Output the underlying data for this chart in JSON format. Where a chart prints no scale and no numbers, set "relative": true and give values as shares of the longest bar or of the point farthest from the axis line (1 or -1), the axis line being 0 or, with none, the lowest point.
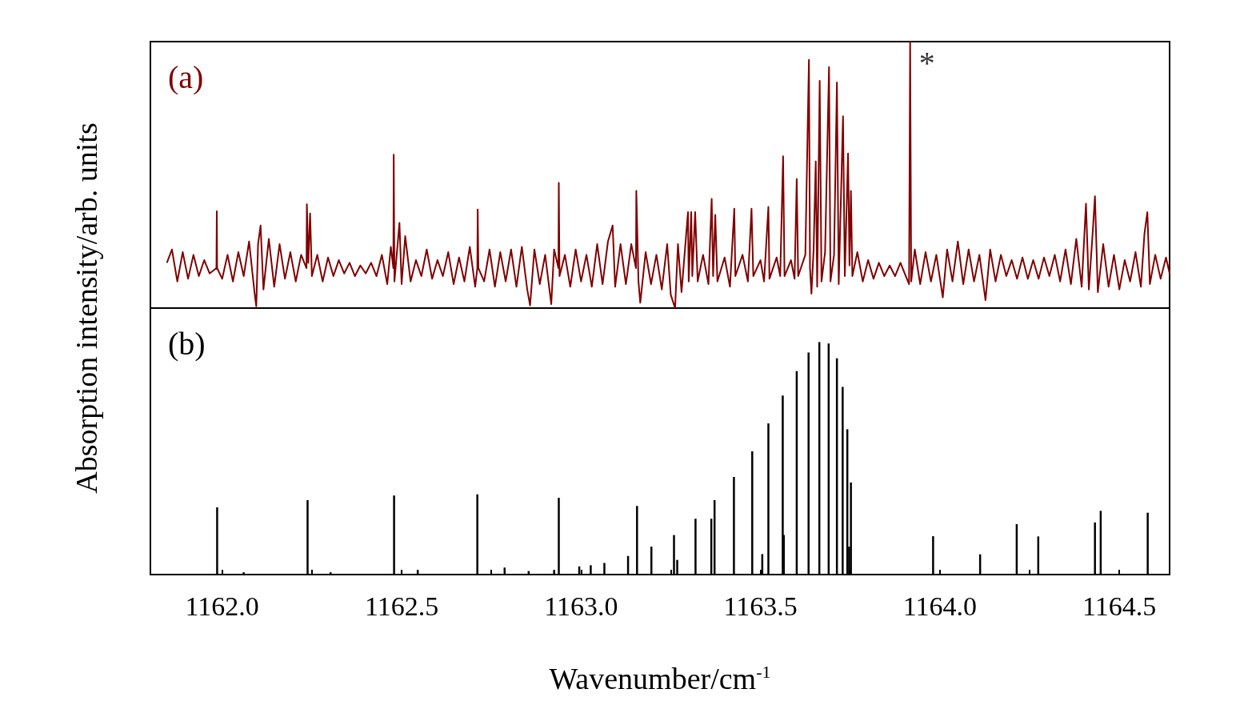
{
  "chart_data": [
    {
      "type": "line",
      "title": "(a)",
      "ylabel": "Absorption intensity/arb. units",
      "relative": true,
      "xlim": [
        1161.8,
        1164.64
      ],
      "tick_labels": false,
      "color": "#800000",
      "annotations": [
        {
          "text": "*",
          "x": 1163.917,
          "y": 1.0
        }
      ],
      "x": [
        1161.846,
        1161.86,
        1161.875,
        1161.89,
        1161.905,
        1161.92,
        1161.935,
        1161.95,
        1161.965,
        1161.984,
        1161.985,
        1161.986,
        1162.0,
        1162.015,
        1162.03,
        1162.045,
        1162.06,
        1162.075,
        1162.09,
        1162.095,
        1162.1,
        1162.107,
        1162.115,
        1162.13,
        1162.145,
        1162.16,
        1162.175,
        1162.19,
        1162.205,
        1162.22,
        1162.235,
        1162.236,
        1162.24,
        1162.245,
        1162.25,
        1162.265,
        1162.28,
        1162.295,
        1162.31,
        1162.325,
        1162.34,
        1162.355,
        1162.37,
        1162.385,
        1162.4,
        1162.415,
        1162.43,
        1162.445,
        1162.46,
        1162.47,
        1162.477,
        1162.478,
        1162.48,
        1162.494,
        1162.5,
        1162.51,
        1162.525,
        1162.54,
        1162.555,
        1162.57,
        1162.585,
        1162.6,
        1162.615,
        1162.63,
        1162.645,
        1162.66,
        1162.675,
        1162.69,
        1162.705,
        1162.711,
        1162.712,
        1162.714,
        1162.73,
        1162.745,
        1162.76,
        1162.775,
        1162.79,
        1162.805,
        1162.82,
        1162.835,
        1162.85,
        1162.858,
        1162.87,
        1162.885,
        1162.9,
        1162.917,
        1162.925,
        1162.937,
        1162.938,
        1162.94,
        1162.955,
        1162.97,
        1162.985,
        1163.0,
        1163.015,
        1163.03,
        1163.045,
        1163.06,
        1163.075,
        1163.088,
        1163.095,
        1163.11,
        1163.125,
        1163.14,
        1163.153,
        1163.154,
        1163.16,
        1163.165,
        1163.18,
        1163.195,
        1163.21,
        1163.225,
        1163.24,
        1163.25,
        1163.262,
        1163.27,
        1163.28,
        1163.298,
        1163.3,
        1163.307,
        1163.31,
        1163.318,
        1163.325,
        1163.34,
        1163.355,
        1163.364,
        1163.368,
        1163.374,
        1163.38,
        1163.4,
        1163.415,
        1163.427,
        1163.43,
        1163.45,
        1163.465,
        1163.475,
        1163.48,
        1163.5,
        1163.51,
        1163.522,
        1163.525,
        1163.545,
        1163.555,
        1163.563,
        1163.567,
        1163.585,
        1163.595,
        1163.601,
        1163.605,
        1163.625,
        1163.635,
        1163.638,
        1163.642,
        1163.648,
        1163.654,
        1163.658,
        1163.665,
        1163.67,
        1163.68,
        1163.691,
        1163.695,
        1163.705,
        1163.713,
        1163.718,
        1163.73,
        1163.735,
        1163.744,
        1163.748,
        1163.752,
        1163.756,
        1163.77,
        1163.785,
        1163.8,
        1163.815,
        1163.83,
        1163.845,
        1163.86,
        1163.875,
        1163.89,
        1163.905,
        1163.914,
        1163.917,
        1163.92,
        1163.93,
        1163.945,
        1163.96,
        1163.975,
        1163.99,
        1164.008,
        1164.02,
        1164.035,
        1164.05,
        1164.065,
        1164.08,
        1164.095,
        1164.11,
        1164.127,
        1164.14,
        1164.155,
        1164.17,
        1164.185,
        1164.2,
        1164.215,
        1164.23,
        1164.245,
        1164.26,
        1164.275,
        1164.29,
        1164.305,
        1164.32,
        1164.335,
        1164.35,
        1164.365,
        1164.38,
        1164.395,
        1164.407,
        1164.415,
        1164.425,
        1164.432,
        1164.44,
        1164.455,
        1164.47,
        1164.485,
        1164.5,
        1164.515,
        1164.53,
        1164.545,
        1164.56,
        1164.57,
        1164.578,
        1164.585,
        1164.6,
        1164.615,
        1164.63,
        1164.64
      ],
      "values": [
        0.17,
        0.22,
        0.1,
        0.21,
        0.11,
        0.2,
        0.12,
        0.18,
        0.13,
        0.15,
        0.363,
        0.15,
        0.11,
        0.2,
        0.1,
        0.21,
        0.12,
        0.25,
        0.06,
        0.007,
        0.24,
        0.31,
        0.07,
        0.26,
        0.08,
        0.24,
        0.11,
        0.21,
        0.1,
        0.2,
        0.15,
        0.39,
        0.17,
        0.355,
        0.12,
        0.2,
        0.1,
        0.19,
        0.12,
        0.18,
        0.13,
        0.17,
        0.12,
        0.16,
        0.13,
        0.17,
        0.12,
        0.2,
        0.09,
        0.23,
        0.15,
        0.576,
        0.1,
        0.32,
        0.09,
        0.27,
        0.1,
        0.18,
        0.12,
        0.22,
        0.11,
        0.18,
        0.12,
        0.21,
        0.09,
        0.19,
        0.1,
        0.23,
        0.08,
        0.15,
        0.37,
        0.15,
        0.1,
        0.22,
        0.08,
        0.21,
        0.1,
        0.22,
        0.08,
        0.23,
        0.07,
        0.01,
        0.22,
        0.09,
        0.2,
        0.015,
        0.22,
        0.15,
        0.47,
        0.12,
        0.2,
        0.08,
        0.22,
        0.1,
        0.2,
        0.08,
        0.24,
        0.09,
        0.25,
        0.31,
        0.08,
        0.24,
        0.09,
        0.24,
        0.15,
        0.44,
        0.1,
        0.02,
        0.21,
        0.09,
        0.2,
        0.07,
        0.24,
        0.05,
        0.0,
        0.24,
        0.06,
        0.36,
        0.1,
        0.36,
        0.12,
        0.36,
        0.1,
        0.2,
        0.09,
        0.41,
        0.12,
        0.35,
        0.1,
        0.19,
        0.08,
        0.373,
        0.12,
        0.2,
        0.1,
        0.373,
        0.12,
        0.18,
        0.1,
        0.38,
        0.11,
        0.19,
        0.12,
        0.57,
        0.12,
        0.18,
        0.11,
        0.484,
        0.12,
        0.2,
        0.932,
        0.15,
        0.054,
        0.22,
        0.55,
        0.08,
        0.853,
        0.1,
        0.21,
        0.905,
        0.1,
        0.2,
        0.847,
        0.09,
        0.72,
        0.12,
        0.58,
        0.16,
        0.44,
        0.12,
        0.21,
        0.1,
        0.18,
        0.11,
        0.17,
        0.12,
        0.16,
        0.12,
        0.17,
        0.12,
        0.09,
        1.0,
        0.1,
        0.22,
        0.09,
        0.21,
        0.1,
        0.2,
        0.04,
        0.22,
        0.1,
        0.25,
        0.09,
        0.22,
        0.1,
        0.2,
        0.03,
        0.22,
        0.1,
        0.2,
        0.12,
        0.18,
        0.11,
        0.19,
        0.11,
        0.18,
        0.11,
        0.19,
        0.12,
        0.2,
        0.1,
        0.22,
        0.09,
        0.26,
        0.08,
        0.392,
        0.07,
        0.27,
        0.42,
        0.06,
        0.24,
        0.08,
        0.2,
        0.07,
        0.18,
        0.1,
        0.21,
        0.08,
        0.28,
        0.36,
        0.09,
        0.2,
        0.11,
        0.19,
        0.13
      ]
    },
    {
      "type": "bar",
      "title": "(b)",
      "xlabel": "Wavenumber/cm$^{-1}$",
      "relative": true,
      "xlim": [
        1161.8,
        1164.64
      ],
      "tick_labels": "x",
      "color": "#000000",
      "xticks": [
        {
          "value": 1162,
          "label": "1162.0"
        },
        {
          "value": 1162.25,
          "label": null
        },
        {
          "value": 1162.5,
          "label": "1162.5"
        },
        {
          "value": 1162.75,
          "label": null
        },
        {
          "value": 1163,
          "label": "1163.0"
        },
        {
          "value": 1163.25,
          "label": null
        },
        {
          "value": 1163.5,
          "label": "1163.5"
        },
        {
          "value": 1163.75,
          "label": null
        },
        {
          "value": 1164,
          "label": "1164.0"
        },
        {
          "value": 1164.25,
          "label": null
        },
        {
          "value": 1164.5,
          "label": "1164.5"
        }
      ],
      "x": [
        1161.986,
        1162.06,
        1162.238,
        1162.302,
        1162.479,
        1162.545,
        1162.711,
        1162.787,
        1162.854,
        1162.925,
        1162.938,
        1162.995,
        1163.027,
        1163.065,
        1163.131,
        1163.156,
        1163.196,
        1163.259,
        1163.268,
        1163.319,
        1163.363,
        1163.372,
        1163.426,
        1163.477,
        1163.505,
        1163.522,
        1163.562,
        1163.565,
        1163.601,
        1163.634,
        1163.664,
        1163.69,
        1163.713,
        1163.729,
        1163.742,
        1163.747,
        1163.752,
        1163.981,
        1164.112,
        1164.214,
        1164.274,
        1164.432,
        1164.448,
        1164.579
      ],
      "values": [
        0.289,
        0.01,
        0.32,
        0.01,
        0.34,
        0.02,
        0.345,
        0.03,
        0.015,
        0.02,
        0.33,
        0.035,
        0.04,
        0.05,
        0.08,
        0.295,
        0.12,
        0.17,
        0.063,
        0.24,
        0.24,
        0.32,
        0.42,
        0.53,
        0.088,
        0.65,
        0.77,
        0.17,
        0.875,
        0.955,
        1.0,
        0.994,
        0.93,
        0.807,
        0.625,
        0.12,
        0.396,
        0.165,
        0.087,
        0.217,
        0.164,
        0.224,
        0.274,
        0.266
      ]
    }
  ]
}
